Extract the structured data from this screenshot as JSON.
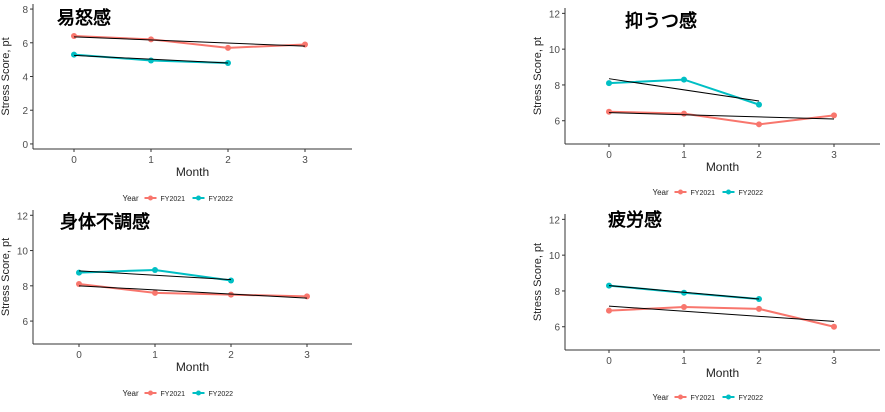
{
  "chart_data": [
    {
      "type": "line",
      "title": "易怒感",
      "xlabel": "Month",
      "ylabel": "Stress Score, pt",
      "x": [
        0,
        1,
        2,
        3
      ],
      "ylim": [
        -0.3,
        8.3
      ],
      "yticks": [
        0,
        2,
        4,
        6,
        8
      ],
      "legend_title": "Year",
      "legend_position": "bottom",
      "series": [
        {
          "name": "FY2021",
          "color": "#f8766d",
          "x": [
            0,
            1,
            2,
            3
          ],
          "values": [
            6.4,
            6.2,
            5.7,
            5.9
          ],
          "trend": [
            6.35,
            5.8
          ]
        },
        {
          "name": "FY2022",
          "color": "#00bfc4",
          "x": [
            0,
            1,
            2
          ],
          "values": [
            5.3,
            4.95,
            4.8
          ],
          "trend": [
            5.25,
            4.8
          ]
        }
      ]
    },
    {
      "type": "line",
      "title": "抑うつ感",
      "xlabel": "Month",
      "ylabel": "Stress Score, pt",
      "x": [
        0,
        1,
        2,
        3
      ],
      "ylim": [
        4.7,
        12.3
      ],
      "yticks": [
        6,
        8,
        10,
        12
      ],
      "legend_title": "Year",
      "legend_position": "bottom",
      "series": [
        {
          "name": "FY2021",
          "color": "#f8766d",
          "x": [
            0,
            1,
            2,
            3
          ],
          "values": [
            6.5,
            6.4,
            5.8,
            6.3
          ],
          "trend": [
            6.45,
            6.1
          ]
        },
        {
          "name": "FY2022",
          "color": "#00bfc4",
          "x": [
            0,
            1,
            2
          ],
          "values": [
            8.1,
            8.3,
            6.9
          ],
          "trend": [
            8.35,
            7.1
          ]
        }
      ]
    },
    {
      "type": "line",
      "title": "身体不調感",
      "xlabel": "Month",
      "ylabel": "Stress Score, pt",
      "x": [
        0,
        1,
        2,
        3
      ],
      "ylim": [
        4.7,
        12.3
      ],
      "yticks": [
        6,
        8,
        10,
        12
      ],
      "legend_title": "Year",
      "legend_position": "bottom",
      "series": [
        {
          "name": "FY2021",
          "color": "#f8766d",
          "x": [
            0,
            1,
            2,
            3
          ],
          "values": [
            8.1,
            7.6,
            7.5,
            7.4
          ],
          "trend": [
            8.0,
            7.3
          ]
        },
        {
          "name": "FY2022",
          "color": "#00bfc4",
          "x": [
            0,
            1,
            2
          ],
          "values": [
            8.75,
            8.9,
            8.3
          ],
          "trend": [
            8.85,
            8.35
          ]
        }
      ]
    },
    {
      "type": "line",
      "title": "疲労感",
      "xlabel": "Month",
      "ylabel": "Stress Score, pt",
      "x": [
        0,
        1,
        2,
        3
      ],
      "ylim": [
        4.7,
        12.3
      ],
      "yticks": [
        6,
        8,
        10,
        12
      ],
      "legend_title": "Year",
      "legend_position": "bottom",
      "series": [
        {
          "name": "FY2021",
          "color": "#f8766d",
          "x": [
            0,
            1,
            2,
            3
          ],
          "values": [
            6.9,
            7.1,
            7.0,
            6.0
          ],
          "trend": [
            7.15,
            6.3
          ]
        },
        {
          "name": "FY2022",
          "color": "#00bfc4",
          "x": [
            0,
            1,
            2
          ],
          "values": [
            8.3,
            7.9,
            7.55
          ],
          "trend": [
            8.3,
            7.55
          ]
        }
      ]
    }
  ]
}
